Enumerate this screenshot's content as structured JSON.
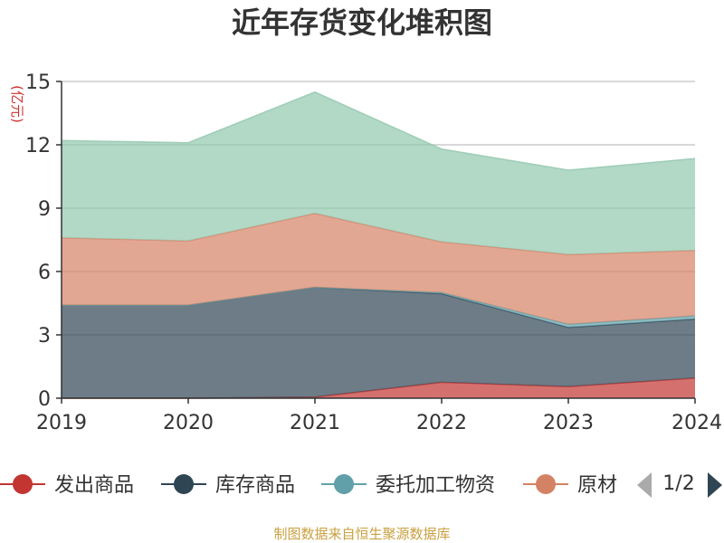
{
  "chart_data": {
    "type": "area",
    "stacked": true,
    "title": "近年存货变化堆积图",
    "ylabel": "(亿元)",
    "x": [
      "2019",
      "2020",
      "2021",
      "2022",
      "2023",
      "2024"
    ],
    "ylim": [
      0,
      15
    ],
    "yticks": [
      "0",
      "3",
      "6",
      "9",
      "12",
      "15"
    ],
    "grid": true,
    "series": [
      {
        "name": "发出商品",
        "color": "#c23531",
        "values": [
          0,
          0,
          0.05,
          0.75,
          0.55,
          0.95
        ]
      },
      {
        "name": "库存商品",
        "color": "#2f4554",
        "values": [
          4.4,
          4.4,
          5.2,
          4.2,
          2.8,
          2.8
        ]
      },
      {
        "name": "委托加工物资",
        "color": "#61a0a8",
        "values": [
          0,
          0,
          0,
          0.05,
          0.15,
          0.15
        ]
      },
      {
        "name": "原材料",
        "color": "#d48265",
        "values": [
          3.2,
          3.05,
          3.5,
          2.4,
          3.3,
          3.1
        ]
      },
      {
        "name": "",
        "color": "#91c7ae",
        "values": [
          4.6,
          4.65,
          5.75,
          4.4,
          4.0,
          4.35
        ]
      }
    ],
    "legend": {
      "position": "bottom",
      "items": [
        "发出商品",
        "库存商品",
        "委托加工物资",
        "原材"
      ],
      "page": "1/2"
    },
    "source": "制图数据来自恒生聚源数据库"
  }
}
